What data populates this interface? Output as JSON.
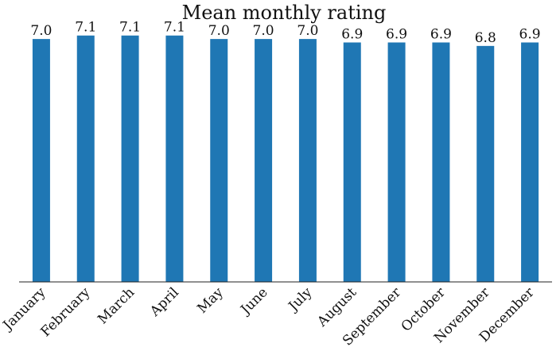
{
  "chart_data": {
    "type": "bar",
    "title": "Mean monthly rating",
    "xlabel": "",
    "ylabel": "",
    "categories": [
      "January",
      "February",
      "March",
      "April",
      "May",
      "June",
      "July",
      "August",
      "September",
      "October",
      "November",
      "December"
    ],
    "values": [
      7.0,
      7.1,
      7.1,
      7.1,
      7.0,
      7.0,
      7.0,
      6.9,
      6.9,
      6.9,
      6.8,
      6.9
    ],
    "value_labels": [
      "7.0",
      "7.1",
      "7.1",
      "7.1",
      "7.0",
      "7.0",
      "7.0",
      "6.9",
      "6.9",
      "6.9",
      "6.8",
      "6.9"
    ],
    "ylim": [
      0,
      7.3
    ],
    "grid": false,
    "legend": "none",
    "bar_color": "#1f77b4"
  }
}
